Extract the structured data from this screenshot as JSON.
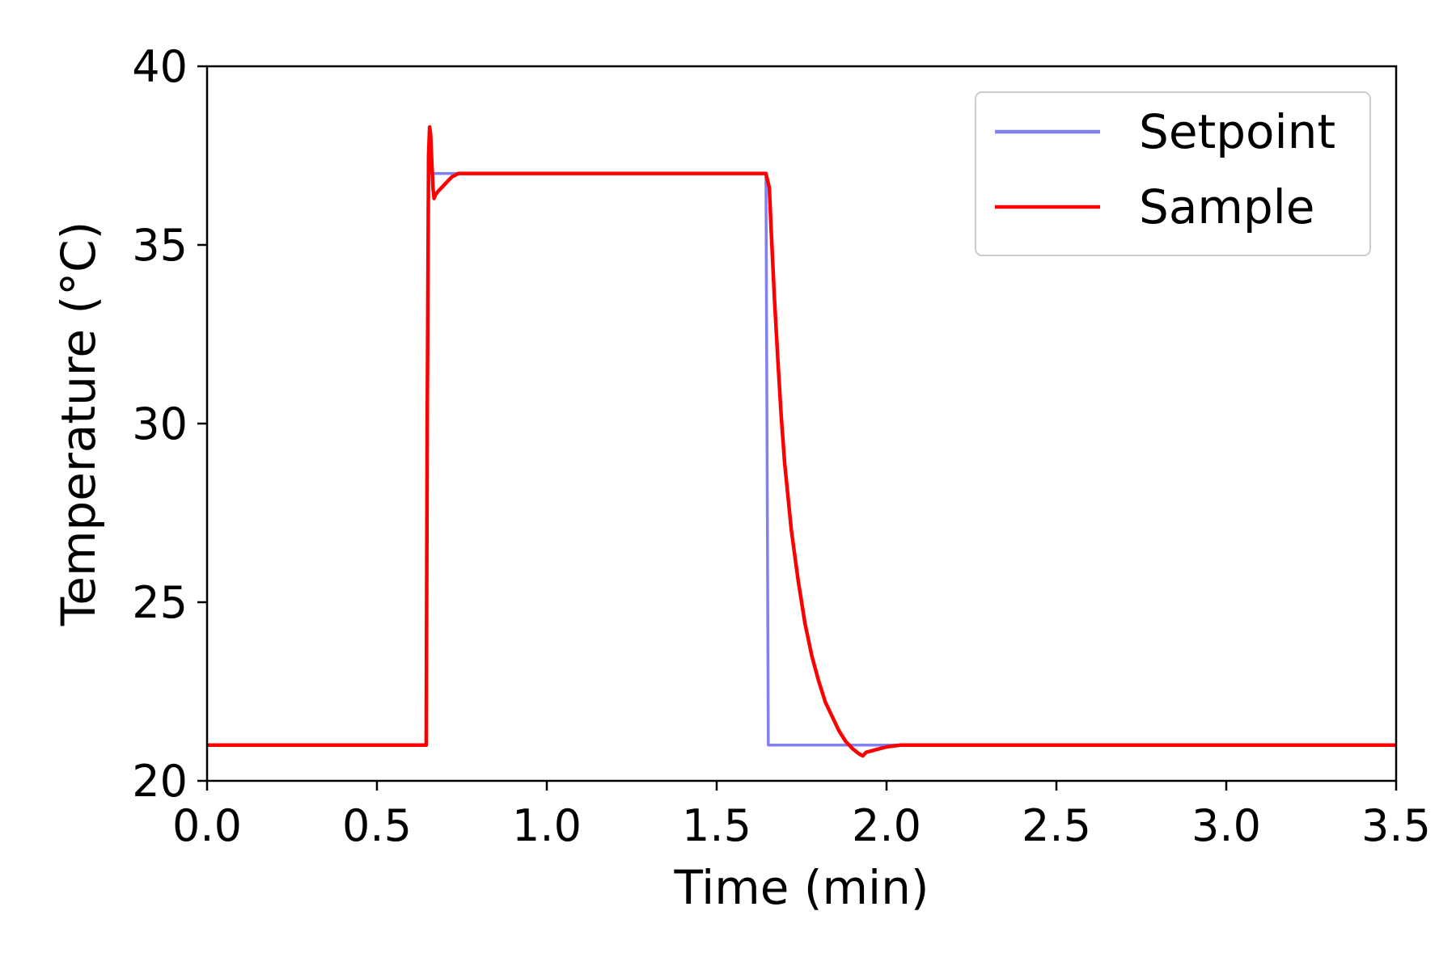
{
  "chart_data": {
    "type": "line",
    "title": "",
    "xlabel": "Time (min)",
    "ylabel": "Temperature (°C)",
    "xlim": [
      0,
      3.5
    ],
    "ylim": [
      20,
      40
    ],
    "xticks": [
      0.0,
      0.5,
      1.0,
      1.5,
      2.0,
      2.5,
      3.0,
      3.5
    ],
    "xtick_labels": [
      "0.0",
      "0.5",
      "1.0",
      "1.5",
      "2.0",
      "2.5",
      "3.0",
      "3.5"
    ],
    "yticks": [
      20,
      25,
      30,
      35,
      40
    ],
    "ytick_labels": [
      "20",
      "25",
      "30",
      "35",
      "40"
    ],
    "grid": false,
    "legend_position": "top-right",
    "series": [
      {
        "name": "Setpoint",
        "color": "#8080f0",
        "x": [
          0,
          0.645,
          0.652,
          0.75,
          1.645,
          1.652,
          2.0,
          3.5
        ],
        "y": [
          21,
          21,
          37,
          37,
          37,
          21,
          21,
          21
        ]
      },
      {
        "name": "Sample",
        "color": "#ff0000",
        "x": [
          0,
          0.645,
          0.648,
          0.652,
          0.655,
          0.658,
          0.661,
          0.665,
          0.668,
          0.672,
          0.68,
          0.69,
          0.7,
          0.71,
          0.72,
          0.73,
          0.74,
          0.75,
          1.0,
          1.645,
          1.655,
          1.66,
          1.67,
          1.68,
          1.69,
          1.7,
          1.72,
          1.74,
          1.76,
          1.78,
          1.8,
          1.82,
          1.84,
          1.86,
          1.88,
          1.9,
          1.92,
          1.93,
          1.94,
          1.96,
          1.98,
          2.0,
          2.04,
          2.1,
          2.5,
          3.0,
          3.5
        ],
        "y": [
          21,
          21,
          30,
          37.5,
          38.3,
          38.1,
          37.4,
          36.6,
          36.3,
          36.4,
          36.5,
          36.6,
          36.7,
          36.8,
          36.9,
          36.95,
          37,
          37,
          37,
          37,
          36.6,
          35.5,
          33.5,
          31.8,
          30.2,
          28.9,
          27.0,
          25.6,
          24.4,
          23.5,
          22.8,
          22.2,
          21.8,
          21.4,
          21.1,
          20.9,
          20.75,
          20.7,
          20.8,
          20.85,
          20.9,
          20.95,
          21,
          21,
          21,
          21,
          21
        ]
      }
    ]
  }
}
